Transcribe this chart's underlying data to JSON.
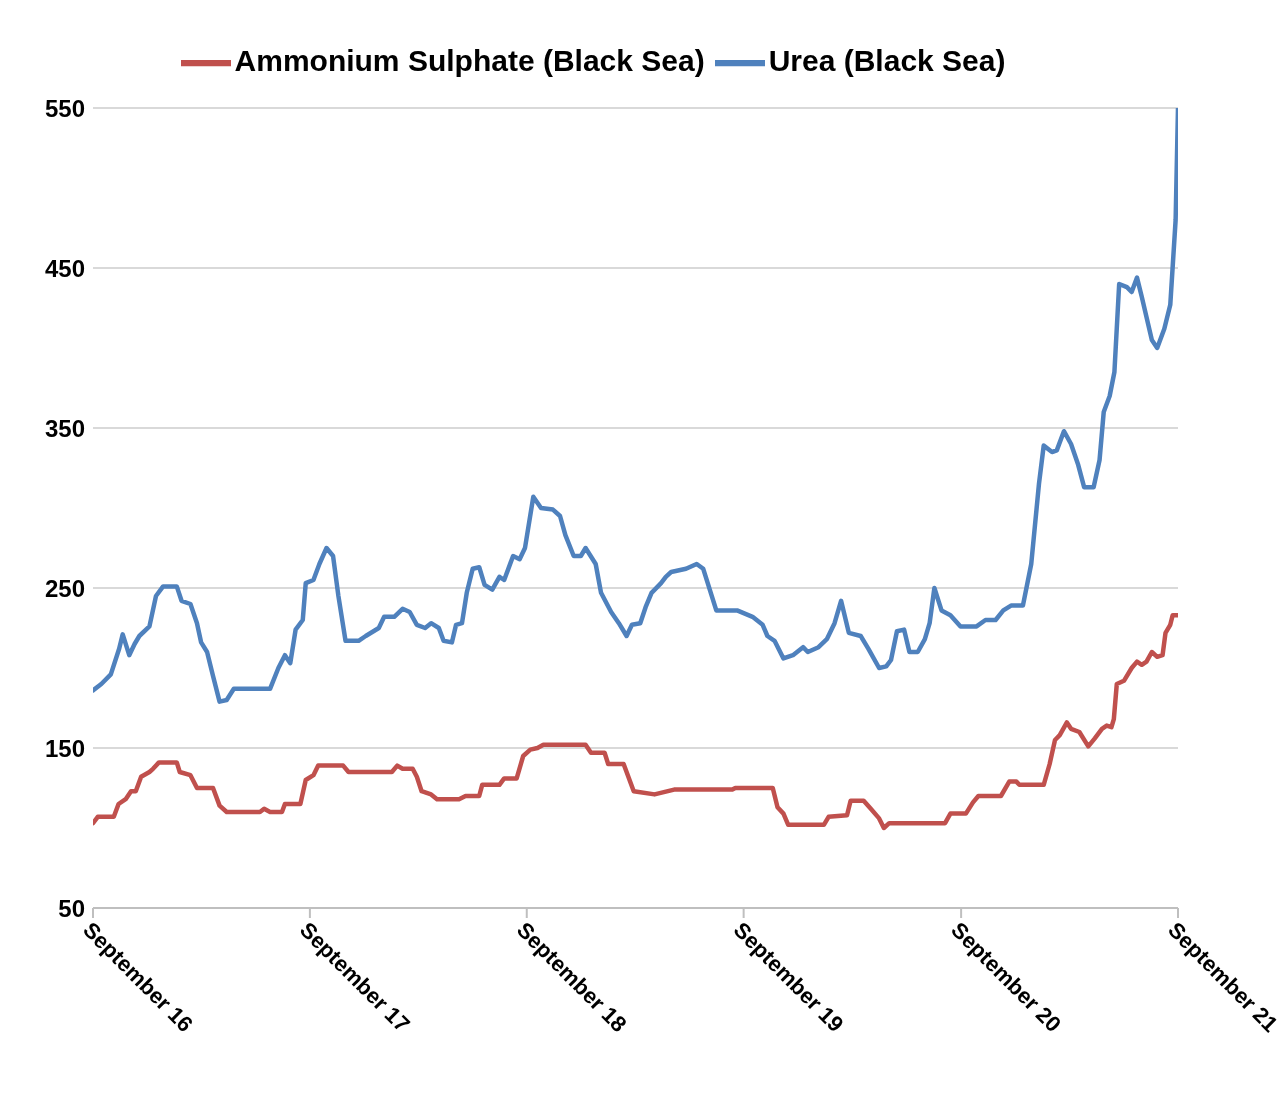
{
  "chart_data": {
    "type": "line",
    "legend": "top",
    "grid": "y",
    "marker": "none",
    "line_style": "solid",
    "xlim": [
      "2016-09-01",
      "2021-09-01"
    ],
    "xticks": [
      {
        "value": "2016-09-01",
        "label": "September 16"
      },
      {
        "value": "2017-09-01",
        "label": "September 17"
      },
      {
        "value": "2018-09-01",
        "label": "September 18"
      },
      {
        "value": "2019-09-01",
        "label": "September 19"
      },
      {
        "value": "2020-09-01",
        "label": "September 20"
      },
      {
        "value": "2021-09-01",
        "label": "September 21"
      }
    ],
    "ylim": [
      50,
      550
    ],
    "yticks": [
      50,
      150,
      250,
      350,
      450,
      550
    ],
    "series": [
      {
        "name": "Urea (Black Sea)",
        "color": "#4f81bd",
        "x": [
          "2016-09-01",
          "2016-09-15",
          "2016-10-01",
          "2016-10-15",
          "2016-10-21",
          "2016-11-01",
          "2016-11-10",
          "2016-11-18",
          "2016-12-05",
          "2016-12-16",
          "2016-12-28",
          "2017-01-20",
          "2017-01-28",
          "2017-02-12",
          "2017-02-23",
          "2017-03-02",
          "2017-03-12",
          "2017-03-22",
          "2017-04-02",
          "2017-04-14",
          "2017-04-26",
          "2017-06-26",
          "2017-07-10",
          "2017-07-21",
          "2017-07-30",
          "2017-08-08",
          "2017-08-20",
          "2017-08-25",
          "2017-09-07",
          "2017-09-17",
          "2017-09-29",
          "2017-10-10",
          "2017-10-19",
          "2017-10-31",
          "2017-11-22",
          "2017-12-04",
          "2017-12-26",
          "2018-01-04",
          "2018-01-21",
          "2018-02-04",
          "2018-02-16",
          "2018-02-28",
          "2018-03-14",
          "2018-03-24",
          "2018-04-06",
          "2018-04-14",
          "2018-04-28",
          "2018-05-05",
          "2018-05-15",
          "2018-05-23",
          "2018-06-02",
          "2018-06-13",
          "2018-06-22",
          "2018-07-05",
          "2018-07-17",
          "2018-07-25",
          "2018-08-09",
          "2018-08-20",
          "2018-08-29",
          "2018-09-12",
          "2018-09-25",
          "2018-10-15",
          "2018-10-27",
          "2018-11-05",
          "2018-11-19",
          "2018-12-01",
          "2018-12-09",
          "2018-12-26",
          "2019-01-04",
          "2019-01-21",
          "2019-02-03",
          "2019-02-16",
          "2019-02-25",
          "2019-03-11",
          "2019-03-20",
          "2019-03-30",
          "2019-04-15",
          "2019-04-23",
          "2019-05-02",
          "2019-05-27",
          "2019-06-14",
          "2019-06-25",
          "2019-07-17",
          "2019-08-21",
          "2019-09-16",
          "2019-10-03",
          "2019-10-11",
          "2019-10-23",
          "2019-11-07",
          "2019-11-23",
          "2019-12-10",
          "2019-12-18",
          "2020-01-05",
          "2020-01-19",
          "2020-02-01",
          "2020-02-12",
          "2020-02-25",
          "2020-03-16",
          "2020-03-29",
          "2020-04-16",
          "2020-04-28",
          "2020-05-06",
          "2020-05-16",
          "2020-05-28",
          "2020-06-06",
          "2020-06-20",
          "2020-07-02",
          "2020-07-10",
          "2020-07-18",
          "2020-07-30",
          "2020-08-14",
          "2020-08-31",
          "2020-09-27",
          "2020-10-12",
          "2020-10-29",
          "2020-11-11",
          "2020-11-24",
          "2020-12-14",
          "2020-12-28",
          "2021-01-10",
          "2021-01-18",
          "2021-02-01",
          "2021-02-09",
          "2021-02-21",
          "2021-03-05",
          "2021-03-17",
          "2021-03-27",
          "2021-04-12",
          "2021-04-22",
          "2021-04-29",
          "2021-05-09",
          "2021-05-17",
          "2021-05-25",
          "2021-06-07",
          "2021-06-15",
          "2021-06-24",
          "2021-07-02",
          "2021-07-19",
          "2021-07-28",
          "2021-08-09",
          "2021-08-19",
          "2021-08-28",
          "2021-09-01"
        ],
        "values": [
          186,
          190,
          196,
          212,
          221,
          208,
          215,
          220,
          226,
          245,
          251,
          251,
          242,
          240,
          228,
          216,
          210,
          195,
          179,
          180,
          187,
          187,
          200,
          208,
          203,
          224,
          230,
          253,
          255,
          265,
          275,
          270,
          245,
          217,
          217,
          220,
          225,
          232,
          232,
          237,
          235,
          227,
          225,
          228,
          225,
          217,
          216,
          227,
          228,
          247,
          262,
          263,
          252,
          249,
          257,
          255,
          270,
          268,
          275,
          307,
          300,
          299,
          295,
          283,
          270,
          270,
          275,
          265,
          247,
          235,
          228,
          220,
          227,
          228,
          238,
          247,
          253,
          257,
          260,
          262,
          265,
          262,
          236,
          236,
          232,
          227,
          220,
          217,
          206,
          208,
          213,
          210,
          213,
          218,
          228,
          242,
          222,
          220,
          212,
          200,
          201,
          205,
          223,
          224,
          210,
          210,
          218,
          228,
          250,
          236,
          233,
          226,
          226,
          230,
          230,
          236,
          239,
          239,
          265,
          315,
          339,
          335,
          336,
          348,
          340,
          327,
          313,
          313,
          330,
          360,
          370,
          385,
          440,
          438,
          435,
          444,
          432,
          405,
          400,
          412,
          427,
          480,
          550
        ]
      },
      {
        "name": "Ammonium Sulphate (Black Sea)",
        "color": "#c0504d",
        "x": [
          "2016-09-01",
          "2016-09-09",
          "2016-10-06",
          "2016-10-14",
          "2016-10-26",
          "2016-11-04",
          "2016-11-12",
          "2016-11-21",
          "2016-12-05",
          "2016-12-11",
          "2016-12-21",
          "2017-01-20",
          "2017-01-25",
          "2017-02-12",
          "2017-02-23",
          "2017-03-22",
          "2017-04-02",
          "2017-04-14",
          "2017-06-09",
          "2017-06-16",
          "2017-06-26",
          "2017-07-16",
          "2017-07-21",
          "2017-08-16",
          "2017-08-25",
          "2017-09-07",
          "2017-09-15",
          "2017-10-27",
          "2017-11-05",
          "2018-01-17",
          "2018-01-26",
          "2018-02-04",
          "2018-02-21",
          "2018-02-28",
          "2018-03-08",
          "2018-03-24",
          "2018-04-03",
          "2018-05-10",
          "2018-05-21",
          "2018-06-13",
          "2018-06-18",
          "2018-07-17",
          "2018-07-25",
          "2018-08-15",
          "2018-08-26",
          "2018-09-07",
          "2018-09-19",
          "2018-09-29",
          "2018-12-09",
          "2018-12-18",
          "2019-01-10",
          "2019-01-16",
          "2019-02-11",
          "2019-02-16",
          "2019-02-28",
          "2019-04-04",
          "2019-05-07",
          "2019-08-13",
          "2019-08-18",
          "2019-10-20",
          "2019-10-28",
          "2019-11-07",
          "2019-11-15",
          "2020-01-14",
          "2020-01-22",
          "2020-02-22",
          "2020-02-28",
          "2020-03-21",
          "2020-04-02",
          "2020-04-16",
          "2020-04-24",
          "2020-05-03",
          "2020-08-05",
          "2020-08-14",
          "2020-09-09",
          "2020-09-21",
          "2020-09-30",
          "2020-11-07",
          "2020-11-21",
          "2020-12-03",
          "2020-12-08",
          "2021-01-18",
          "2021-01-28",
          "2021-02-06",
          "2021-02-14",
          "2021-02-26",
          "2021-03-05",
          "2021-03-19",
          "2021-04-03",
          "2021-04-14",
          "2021-04-26",
          "2021-05-04",
          "2021-05-12",
          "2021-05-16",
          "2021-05-21",
          "2021-06-02",
          "2021-06-15",
          "2021-06-24",
          "2021-07-02",
          "2021-07-10",
          "2021-07-19",
          "2021-07-28",
          "2021-08-06",
          "2021-08-11",
          "2021-08-19",
          "2021-08-23",
          "2021-09-01"
        ],
        "values": [
          103,
          107,
          107,
          115,
          118,
          123,
          123,
          132,
          135,
          137,
          141,
          141,
          135,
          133,
          125,
          125,
          114,
          110,
          110,
          112,
          110,
          110,
          115,
          115,
          130,
          133,
          139,
          139,
          135,
          135,
          139,
          137,
          137,
          132,
          123,
          121,
          118,
          118,
          120,
          120,
          127,
          127,
          131,
          131,
          145,
          149,
          150,
          152,
          152,
          147,
          147,
          140,
          140,
          135,
          123,
          121,
          124,
          124,
          125,
          125,
          113,
          109,
          102,
          102,
          107,
          108,
          117,
          117,
          112,
          106,
          100,
          103,
          103,
          109,
          109,
          116,
          120,
          120,
          129,
          129,
          127,
          127,
          140,
          155,
          158,
          166,
          162,
          160,
          151,
          156,
          162,
          164,
          163,
          168,
          190,
          192,
          200,
          204,
          202,
          204,
          210,
          207,
          208,
          222,
          227,
          233,
          233
        ]
      }
    ]
  }
}
